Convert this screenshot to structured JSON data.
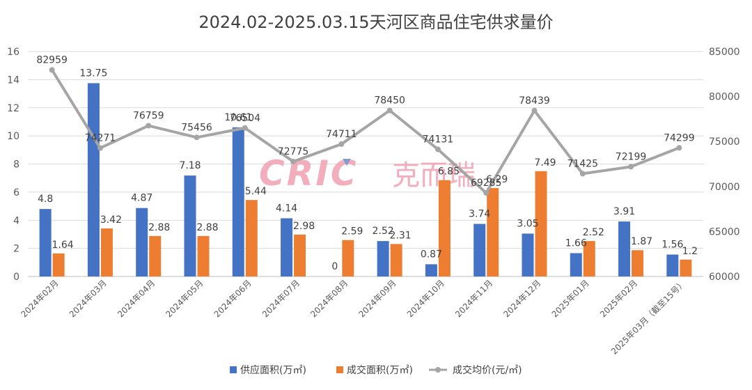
{
  "chart_data": {
    "type": "bar",
    "title": "2024.02-2025.03.15天河区商品住宅供求量价",
    "categories": [
      "2024年02月",
      "2024年03月",
      "2024年04月",
      "2024年05月",
      "2024年06月",
      "2024年07月",
      "2024年08月",
      "2024年09月",
      "2024年10月",
      "2024年11月",
      "2024年12月",
      "2025年01月",
      "2025年02月",
      "2025年03月（截至15号）"
    ],
    "series": [
      {
        "name": "供应面积(万㎡)",
        "type": "bar",
        "axis": "left",
        "color": "#4472C4",
        "values": [
          4.8,
          13.75,
          4.87,
          7.18,
          10.61,
          4.14,
          0,
          2.52,
          0.87,
          3.74,
          3.05,
          1.66,
          3.91,
          1.56
        ],
        "labels": [
          "4.8",
          "13.75",
          "4.87",
          "7.18",
          "10.61",
          "4.14",
          "0",
          "2.52",
          "0.87",
          "3.74",
          "3.05",
          "1.66",
          "3.91",
          "1.56"
        ]
      },
      {
        "name": "成交面积(万㎡)",
        "type": "bar",
        "axis": "left",
        "color": "#ED7D31",
        "values": [
          1.64,
          3.42,
          2.88,
          2.88,
          5.44,
          2.98,
          2.59,
          2.31,
          6.85,
          6.29,
          7.49,
          2.52,
          1.87,
          1.2
        ],
        "labels": [
          "1.64",
          "3.42",
          "2.88",
          "2.88",
          "5.44",
          "2.98",
          "2.59",
          "2.31",
          "6.85",
          "6.29",
          "7.49",
          "2.52",
          "1.87",
          "1.2"
        ]
      },
      {
        "name": "成交均价(元/㎡)",
        "type": "line",
        "axis": "right",
        "color": "#A5A5A5",
        "values": [
          82959,
          74271,
          76759,
          75456,
          76504,
          72775,
          74711,
          78450,
          74131,
          69285,
          78439,
          71425,
          72199,
          74299
        ],
        "labels": [
          "82959",
          "74271",
          "76759",
          "75456",
          "76504",
          "72775",
          "74711",
          "78450",
          "74131",
          "69285",
          "78439",
          "71425",
          "72199",
          "74299"
        ]
      }
    ],
    "y_left": {
      "min": 0,
      "max": 16,
      "ticks": [
        "0",
        "2",
        "4",
        "6",
        "8",
        "10",
        "12",
        "14",
        "16"
      ]
    },
    "y_right": {
      "min": 60000,
      "max": 85000,
      "ticks": [
        "60000",
        "65000",
        "70000",
        "75000",
        "80000",
        "85000"
      ]
    },
    "grid": true,
    "legend": "bottom",
    "watermark": {
      "logo_text": "CRIC",
      "brand_text": "克而瑞",
      "color": "#F2A0B3"
    }
  }
}
